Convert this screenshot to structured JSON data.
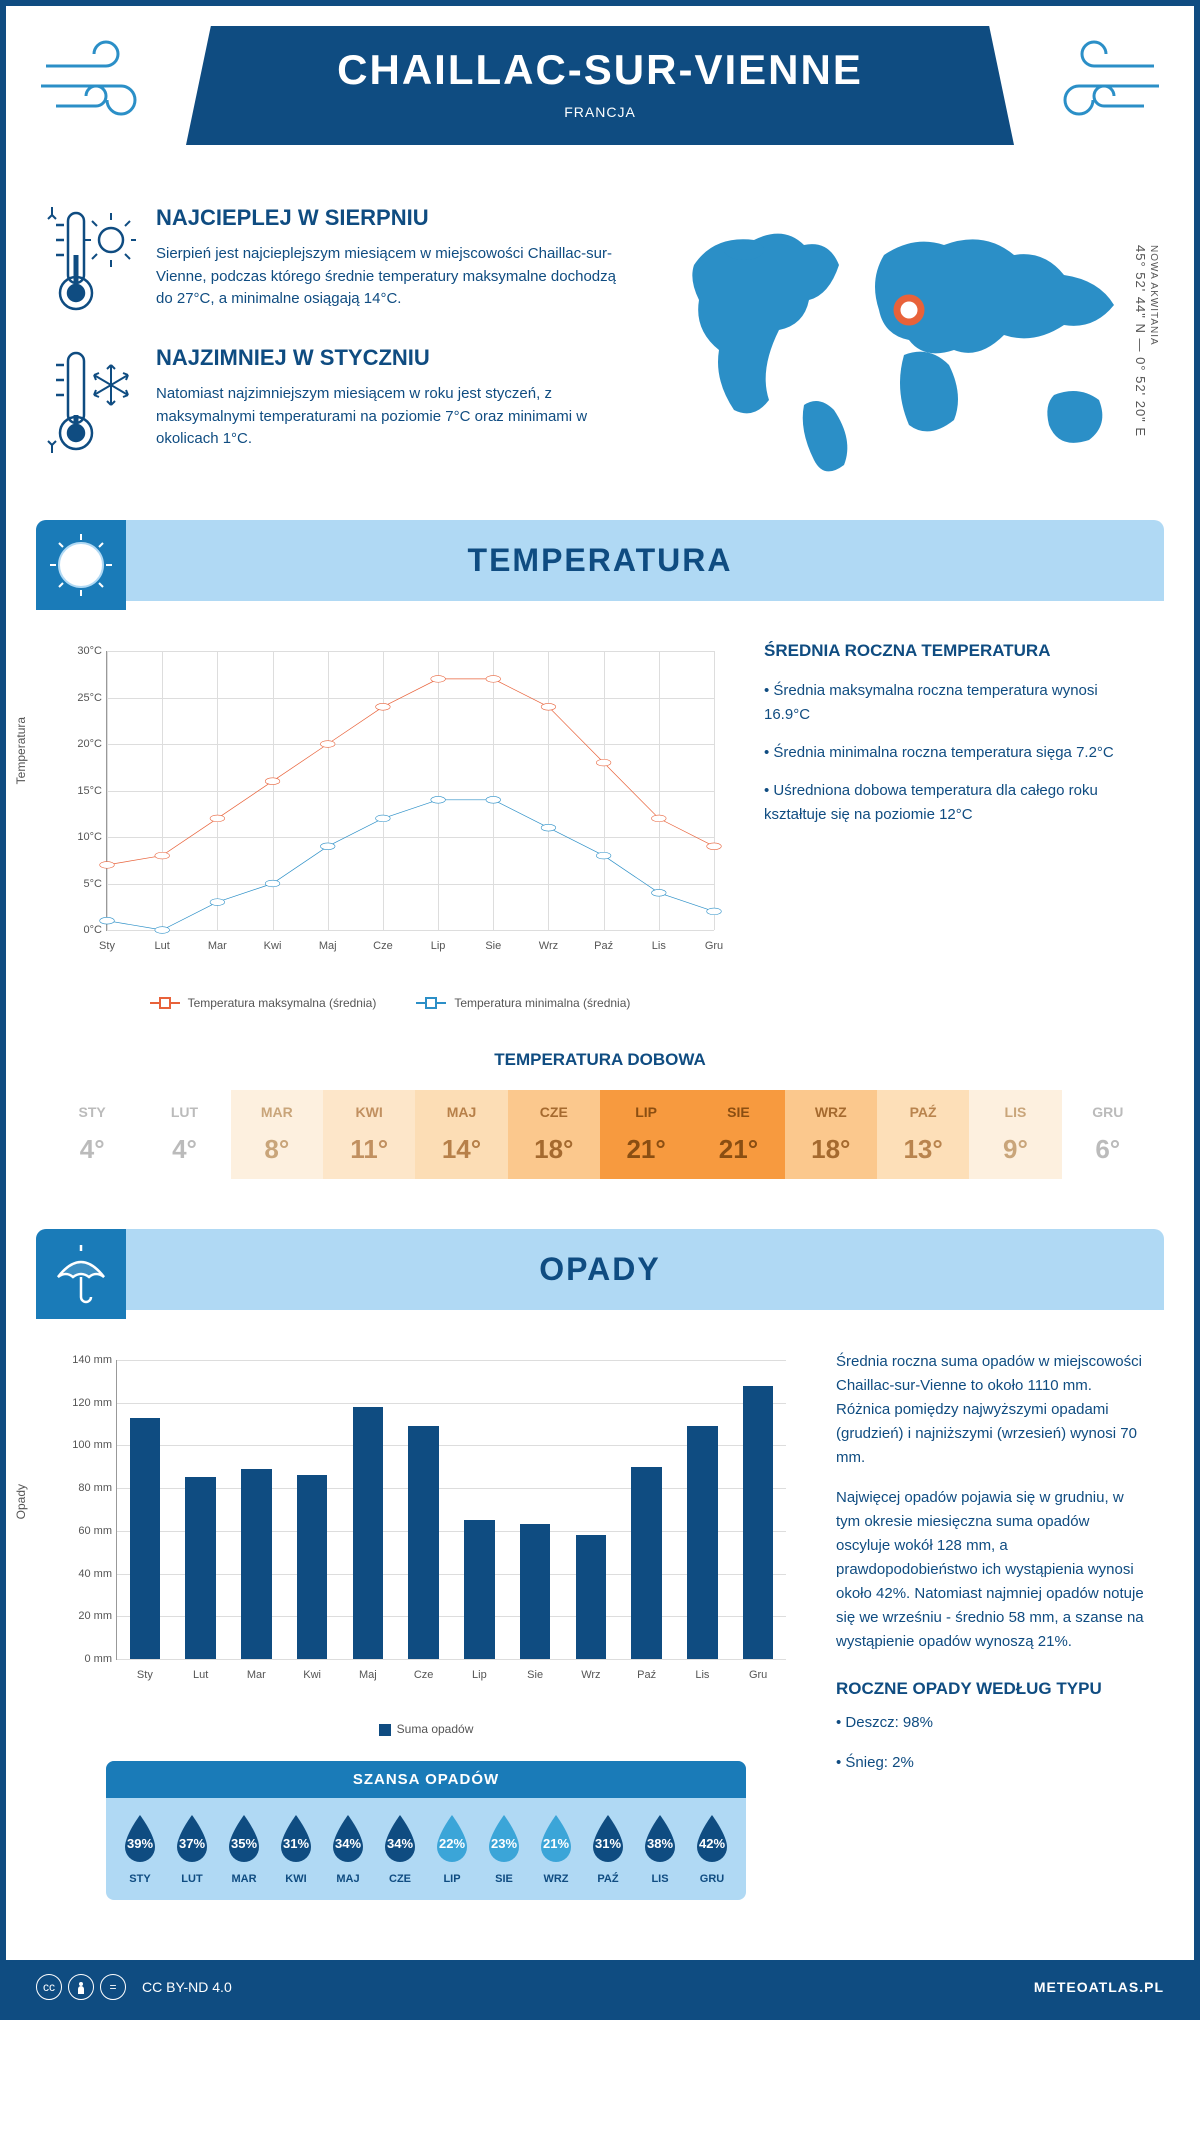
{
  "header": {
    "title": "CHAILLAC-SUR-VIENNE",
    "subtitle": "FRANCJA"
  },
  "intro": {
    "warmest": {
      "title": "NAJCIEPLEJ W SIERPNIU",
      "body": "Sierpień jest najcieplejszym miesiącem w miejscowości Chaillac-sur-Vienne, podczas którego średnie temperatury maksymalne dochodzą do 27°C, a minimalne osiągają 14°C."
    },
    "coldest": {
      "title": "NAJZIMNIEJ W STYCZNIU",
      "body": "Natomiast najzimniejszym miesiącem w roku jest styczeń, z maksymalnymi temperaturami na poziomie 7°C oraz minimami w okolicach 1°C."
    },
    "coords": "45° 52' 44\" N — 0° 52' 20\" E",
    "region": "NOWA AKWITANIA"
  },
  "temp_section": {
    "title": "TEMPERATURA",
    "annual_title": "ŚREDNIA ROCZNA TEMPERATURA",
    "bullets": [
      "• Średnia maksymalna roczna temperatura wynosi 16.9°C",
      "• Średnia minimalna roczna temperatura sięga 7.2°C",
      "• Uśredniona dobowa temperatura dla całego roku kształtuje się na poziomie 12°C"
    ],
    "chart": {
      "type": "line",
      "months": [
        "Sty",
        "Lut",
        "Mar",
        "Kwi",
        "Maj",
        "Cze",
        "Lip",
        "Sie",
        "Wrz",
        "Paź",
        "Lis",
        "Gru"
      ],
      "max_series": [
        7,
        8,
        12,
        16,
        20,
        24,
        27,
        27,
        24,
        18,
        12,
        9
      ],
      "min_series": [
        1,
        0,
        3,
        5,
        9,
        12,
        14,
        14,
        11,
        8,
        4,
        2
      ],
      "max_color": "#e8623a",
      "min_color": "#2b8fc7",
      "ylim": [
        0,
        30
      ],
      "ytick_step": 5,
      "ytick_suffix": "°C",
      "yaxis_label": "Temperatura",
      "grid_color": "#dddddd",
      "legend_max": "Temperatura maksymalna (średnia)",
      "legend_min": "Temperatura minimalna (średnia)"
    },
    "daily": {
      "title": "TEMPERATURA DOBOWA",
      "months": [
        "STY",
        "LUT",
        "MAR",
        "KWI",
        "MAJ",
        "CZE",
        "LIP",
        "SIE",
        "WRZ",
        "PAŹ",
        "LIS",
        "GRU"
      ],
      "values": [
        "4°",
        "4°",
        "8°",
        "11°",
        "14°",
        "18°",
        "21°",
        "21°",
        "18°",
        "13°",
        "9°",
        "6°"
      ],
      "colors": [
        "#ffffff",
        "#ffffff",
        "#fdf0df",
        "#fde6c9",
        "#fcddb5",
        "#fbc88d",
        "#f79a3f",
        "#f79a3f",
        "#fbc88d",
        "#fddfb8",
        "#fdf0df",
        "#ffffff"
      ],
      "text_colors": [
        "#bbbbbb",
        "#bbbbbb",
        "#c9a57a",
        "#c19060",
        "#b78049",
        "#a56a2f",
        "#8a4e12",
        "#8a4e12",
        "#a56a2f",
        "#b9844e",
        "#c9a57a",
        "#bbbbbb"
      ]
    }
  },
  "precip_section": {
    "title": "OPADY",
    "chart": {
      "type": "bar",
      "months": [
        "Sty",
        "Lut",
        "Mar",
        "Kwi",
        "Maj",
        "Cze",
        "Lip",
        "Sie",
        "Wrz",
        "Paź",
        "Lis",
        "Gru"
      ],
      "values": [
        113,
        85,
        89,
        86,
        118,
        109,
        65,
        63,
        58,
        90,
        109,
        128
      ],
      "bar_color": "#0f4c81",
      "ylim": [
        0,
        140
      ],
      "ytick_step": 20,
      "ytick_suffix": " mm",
      "yaxis_label": "Opady",
      "legend": "Suma opadów",
      "bar_width": 0.55
    },
    "body1": "Średnia roczna suma opadów w miejscowości Chaillac-sur-Vienne to około 1110 mm. Różnica pomiędzy najwyższymi opadami (grudzień) i najniższymi (wrzesień) wynosi 70 mm.",
    "body2": "Najwięcej opadów pojawia się w grudniu, w tym okresie miesięczna suma opadów oscyluje wokół 128 mm, a prawdopodobieństwo ich wystąpienia wynosi około 42%. Natomiast najmniej opadów notuje się we wrześniu - średnio 58 mm, a szanse na wystąpienie opadów wynoszą 21%.",
    "chance": {
      "title": "SZANSA OPADÓW",
      "months": [
        "STY",
        "LUT",
        "MAR",
        "KWI",
        "MAJ",
        "CZE",
        "LIP",
        "SIE",
        "WRZ",
        "PAŹ",
        "LIS",
        "GRU"
      ],
      "values": [
        "39%",
        "37%",
        "35%",
        "31%",
        "34%",
        "34%",
        "22%",
        "23%",
        "21%",
        "31%",
        "38%",
        "42%"
      ],
      "drop_colors": [
        "#0f4c81",
        "#0f4c81",
        "#0f4c81",
        "#0f4c81",
        "#0f4c81",
        "#0f4c81",
        "#3ba5d8",
        "#3ba5d8",
        "#3ba5d8",
        "#0f4c81",
        "#0f4c81",
        "#0f4c81"
      ]
    },
    "by_type": {
      "title": "ROCZNE OPADY WEDŁUG TYPU",
      "items": [
        "• Deszcz: 98%",
        "• Śnieg: 2%"
      ]
    }
  },
  "footer": {
    "license": "CC BY-ND 4.0",
    "site": "METEOATLAS.PL"
  },
  "colors": {
    "primary": "#0f4c81",
    "light_blue": "#b0d9f4",
    "mid_blue": "#1a7bb8",
    "map_blue": "#2b8fc7"
  }
}
